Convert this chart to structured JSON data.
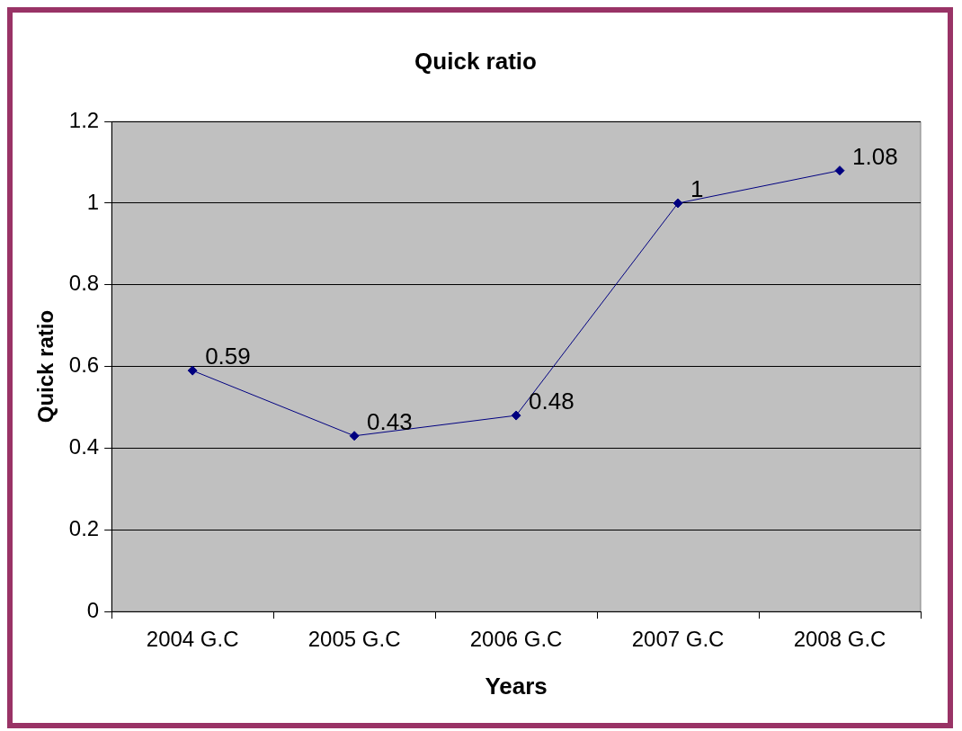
{
  "chart_data": {
    "type": "line",
    "title": "Quick ratio",
    "xlabel": "Years",
    "ylabel": "Quick ratio",
    "categories": [
      "2004 G.C",
      "2005 G.C",
      "2006 G.C",
      "2007 G.C",
      "2008 G.C"
    ],
    "series": [
      {
        "color": "#000080",
        "values": [
          0.59,
          0.43,
          0.48,
          1,
          1.08
        ]
      }
    ],
    "ylim": [
      0,
      1.2
    ],
    "yticks": [
      0,
      0.2,
      0.4,
      0.6,
      0.8,
      1,
      1.2
    ],
    "grid": "y",
    "legend": false,
    "marker": "diamond",
    "line_style": "solid",
    "data_labels": true
  }
}
